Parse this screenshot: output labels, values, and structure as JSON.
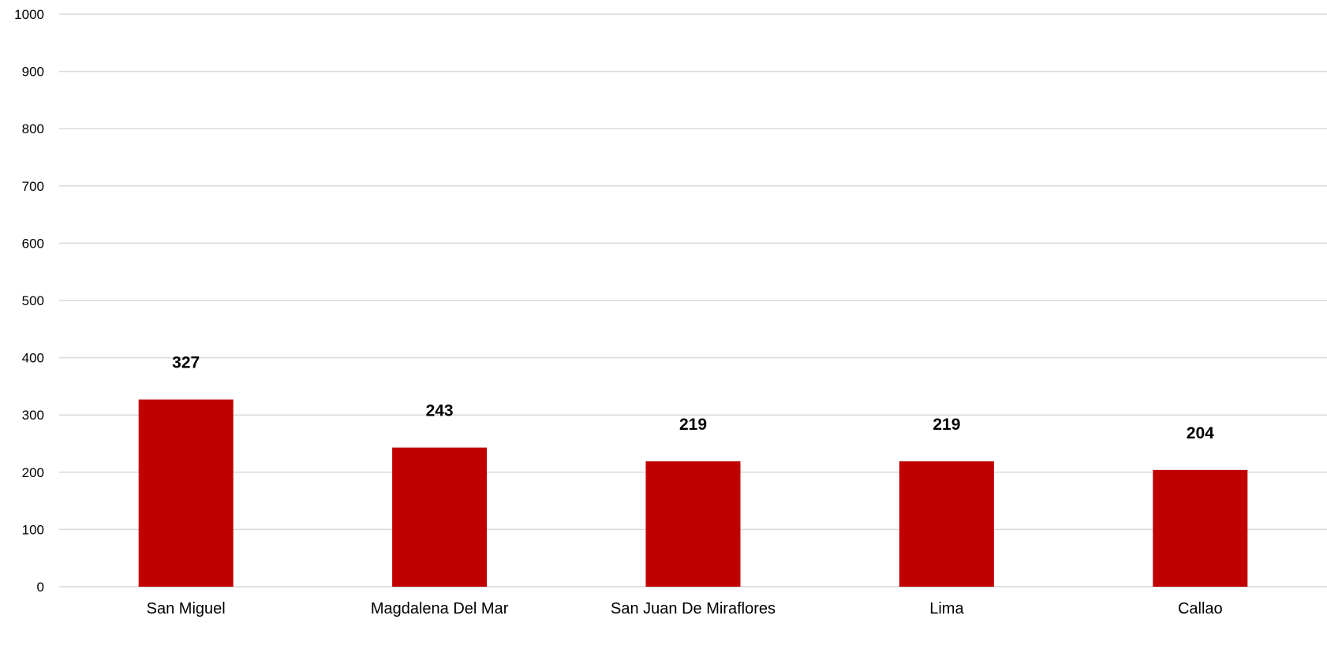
{
  "chart_data": {
    "type": "bar",
    "title": "",
    "xlabel": "",
    "ylabel": "",
    "categories": [
      "San Miguel",
      "Magdalena Del Mar",
      "San Juan De Miraflores",
      "Lima",
      "Callao"
    ],
    "values": [
      327,
      243,
      219,
      219,
      204
    ],
    "data_labels": [
      "327",
      "243",
      "219",
      "219",
      "204"
    ],
    "ylim": [
      0,
      1000
    ],
    "yticks": [
      0,
      100,
      200,
      300,
      400,
      500,
      600,
      700,
      800,
      900,
      1000
    ],
    "grid": true,
    "legend": "none",
    "colors": {
      "bar": "#c00000",
      "grid": "#d9d9d9"
    }
  }
}
